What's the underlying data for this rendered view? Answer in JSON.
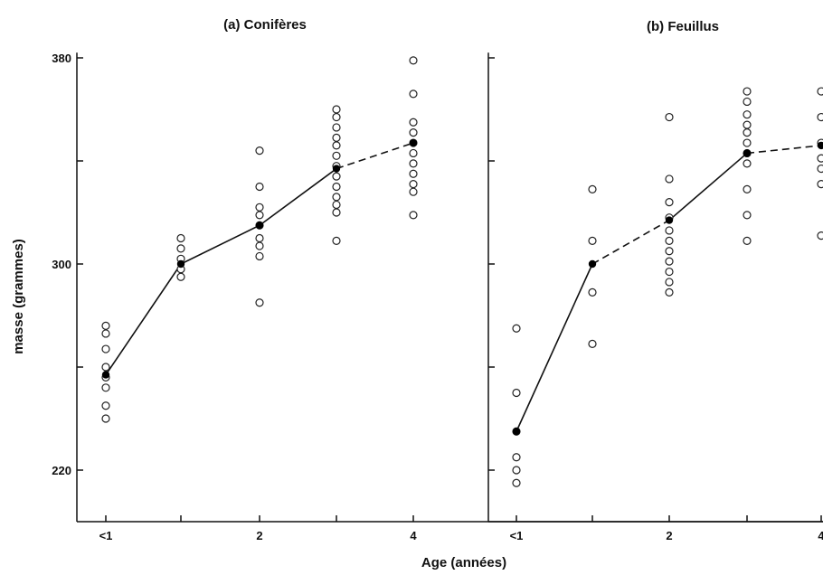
{
  "figure": {
    "ylabel": "masse (grammes)",
    "xlabel": "Age (années)"
  },
  "chart_data": [
    {
      "type": "scatter",
      "title": "(a) Conifères",
      "x_tick_labels": [
        "<1",
        "",
        "2",
        "",
        "4"
      ],
      "y_ticks": [
        220,
        260,
        300,
        340,
        380
      ],
      "y_tick_labels": [
        "220",
        "",
        "300",
        "",
        "380"
      ],
      "ylim": [
        215,
        382
      ],
      "x_categories": [
        "<1",
        "1",
        "2",
        "3",
        "4"
      ],
      "points": [
        {
          "x": "<1",
          "ys": [
            276,
            273,
            267,
            260,
            256,
            252,
            245,
            240
          ]
        },
        {
          "x": "1",
          "ys": [
            310,
            306,
            302,
            298,
            295
          ]
        },
        {
          "x": "2",
          "ys": [
            344,
            330,
            322,
            319,
            315,
            310,
            307,
            303,
            285
          ]
        },
        {
          "x": "3",
          "ys": [
            360,
            357,
            353,
            349,
            346,
            342,
            338,
            334,
            330,
            326,
            323,
            320,
            309
          ]
        },
        {
          "x": "4",
          "ys": [
            379,
            366,
            355,
            351,
            347,
            343,
            339,
            335,
            331,
            328,
            319
          ]
        }
      ],
      "means": [
        {
          "x": "<1",
          "y": 257,
          "style": "solid"
        },
        {
          "x": "1",
          "y": 300,
          "style": "solid"
        },
        {
          "x": "2",
          "y": 315,
          "style": "solid"
        },
        {
          "x": "3",
          "y": 337,
          "style": "solid"
        },
        {
          "x": "4",
          "y": 347,
          "style": "dashed"
        }
      ]
    },
    {
      "type": "scatter",
      "title": "(b) Feuillus",
      "x_tick_labels": [
        "<1",
        "",
        "2",
        "",
        "4"
      ],
      "y_ticks": [
        220,
        260,
        300,
        340,
        380
      ],
      "y_tick_labels": [],
      "ylim": [
        215,
        382
      ],
      "x_categories": [
        "<1",
        "1",
        "2",
        "3",
        "4"
      ],
      "points": [
        {
          "x": "<1",
          "ys": [
            275,
            250,
            235,
            225,
            220,
            215
          ]
        },
        {
          "x": "1",
          "ys": [
            329,
            309,
            289,
            269
          ]
        },
        {
          "x": "2",
          "ys": [
            357,
            333,
            324,
            318,
            313,
            309,
            305,
            301,
            297,
            293,
            289
          ]
        },
        {
          "x": "3",
          "ys": [
            367,
            363,
            358,
            354,
            351,
            347,
            343,
            339,
            329,
            319,
            309
          ]
        },
        {
          "x": "4",
          "ys": [
            367,
            357,
            347,
            341,
            337,
            331,
            311
          ]
        }
      ],
      "means": [
        {
          "x": "<1",
          "y": 235,
          "style": "solid"
        },
        {
          "x": "1",
          "y": 300,
          "style": "solid"
        },
        {
          "x": "2",
          "y": 317,
          "style": "dashed"
        },
        {
          "x": "3",
          "y": 343,
          "style": "solid"
        },
        {
          "x": "4",
          "y": 346,
          "style": "dashed"
        }
      ]
    }
  ]
}
